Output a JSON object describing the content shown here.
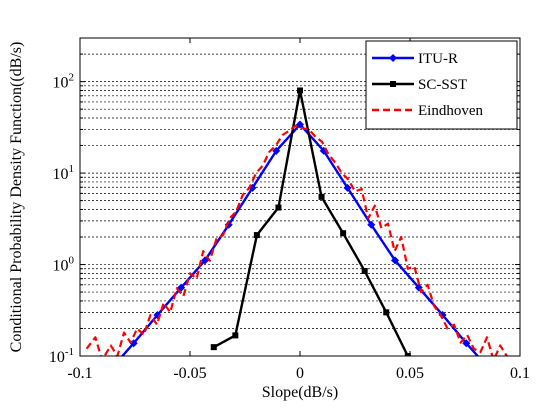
{
  "chart_data": {
    "type": "line",
    "xlabel": "Slope(dB/s)",
    "ylabel": "Conditional Probability Density Function((dB/s)",
    "xlim": [
      -0.1,
      0.1
    ],
    "ylim": [
      0.1,
      300
    ],
    "yscale": "log",
    "grid": "y-major-and-minor-dashed",
    "legend_position": "top-right",
    "xticks": [
      -0.1,
      -0.05,
      0,
      0.05,
      0.1
    ],
    "xtick_labels": [
      "-0.1",
      "-0.05",
      "0",
      "0.05",
      "0.1"
    ],
    "yticks": [
      0.1,
      1,
      10,
      100
    ],
    "ytick_labels": [
      {
        "base": "10",
        "exp": "-1"
      },
      {
        "base": "10",
        "exp": "0"
      },
      {
        "base": "10",
        "exp": "1"
      },
      {
        "base": "10",
        "exp": "2"
      }
    ],
    "series": [
      {
        "name": "ITU-R",
        "color": "#0000ff",
        "marker": "diamond",
        "style": "solid",
        "x": [
          -0.0864,
          -0.0756,
          -0.0648,
          -0.054,
          -0.0432,
          -0.0324,
          -0.0216,
          -0.0108,
          0.0,
          0.0108,
          0.0216,
          0.0324,
          0.0432,
          0.054,
          0.0648,
          0.0756,
          0.0864
        ],
        "y": [
          0.07,
          0.138,
          0.281,
          0.56,
          1.11,
          2.72,
          6.89,
          17.5,
          34.0,
          17.5,
          6.89,
          2.72,
          1.11,
          0.56,
          0.281,
          0.138,
          0.07
        ]
      },
      {
        "name": "SC-SST",
        "color": "#000000",
        "marker": "square",
        "style": "solid",
        "x": [
          -0.0392,
          -0.0294,
          -0.0196,
          -0.0098,
          0.0,
          0.0098,
          0.0196,
          0.0294,
          0.0392,
          0.049
        ],
        "y": [
          0.125,
          0.168,
          2.1,
          4.2,
          80,
          5.5,
          2.2,
          0.85,
          0.3,
          0.1
        ]
      },
      {
        "name": "Eindhoven",
        "color": "#ff0000",
        "marker": "none",
        "style": "dashed",
        "x": [
          -0.097,
          -0.093,
          -0.09,
          -0.086,
          -0.083,
          -0.08,
          -0.077,
          -0.074,
          -0.071,
          -0.068,
          -0.065,
          -0.062,
          -0.059,
          -0.056,
          -0.053,
          -0.05,
          -0.047,
          -0.044,
          -0.041,
          -0.038,
          -0.035,
          -0.032,
          -0.029,
          -0.026,
          -0.023,
          -0.02,
          -0.017,
          -0.014,
          -0.011,
          -0.008,
          -0.005,
          -0.002,
          0.001,
          0.004,
          0.007,
          0.01,
          0.013,
          0.016,
          0.019,
          0.022,
          0.025,
          0.028,
          0.031,
          0.034,
          0.037,
          0.04,
          0.043,
          0.046,
          0.049,
          0.052,
          0.055,
          0.058,
          0.061,
          0.064,
          0.067,
          0.07,
          0.073,
          0.076,
          0.079,
          0.082,
          0.085,
          0.088,
          0.091,
          0.094,
          0.097
        ],
        "y": [
          0.12,
          0.16,
          0.09,
          0.13,
          0.1,
          0.18,
          0.14,
          0.2,
          0.17,
          0.28,
          0.22,
          0.38,
          0.3,
          0.55,
          0.45,
          0.8,
          0.7,
          1.4,
          1.1,
          1.9,
          2.1,
          3.2,
          3.8,
          5.8,
          6.9,
          10,
          12,
          17,
          20,
          26,
          29,
          33,
          31,
          30,
          25,
          22,
          16,
          13,
          10,
          8.5,
          6.3,
          6.7,
          3.2,
          4.4,
          2.5,
          2.8,
          1.4,
          2.0,
          0.9,
          0.95,
          0.5,
          0.6,
          0.35,
          0.28,
          0.2,
          0.22,
          0.14,
          0.17,
          0.12,
          0.11,
          0.16,
          0.09,
          0.13,
          0.1,
          0.09
        ]
      }
    ]
  }
}
